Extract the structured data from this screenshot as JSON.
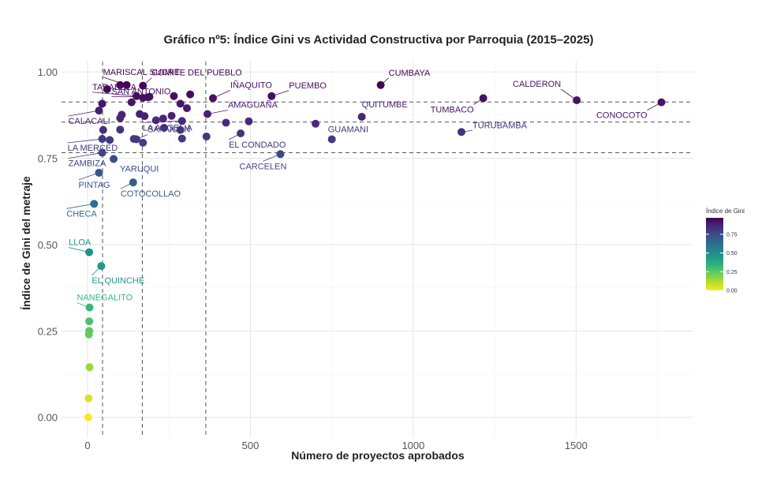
{
  "chart_data": {
    "type": "scatter",
    "title": "Gráfico nº5: Índice Gini vs Actividad Constructiva por Parroquia (2015–2025)",
    "xlabel": "Número de proyectos aprobados",
    "ylabel": "Índice de Gini del metraje",
    "xlim": [
      -80,
      1860
    ],
    "ylim": [
      -0.06,
      1.03
    ],
    "x_ticks": [
      0,
      500,
      1000,
      1500
    ],
    "x_tick_labels": [
      "0",
      "500",
      "1000",
      "1500"
    ],
    "y_ticks": [
      0,
      0.25,
      0.5,
      0.75,
      1.0
    ],
    "y_tick_labels": [
      "0.00",
      "0.25",
      "0.50",
      "0.75",
      "1.00"
    ],
    "grid": true,
    "reference_lines": {
      "vertical_x": [
        46,
        168,
        363
      ],
      "horizontal_y": [
        0.766,
        0.855,
        0.913
      ]
    },
    "legend": {
      "title": "Índice de Gini",
      "ticks": [
        0,
        0.25,
        0.5,
        0.75
      ],
      "tick_labels": [
        "0.00",
        "0.25",
        "0.50",
        "0.75"
      ],
      "position": "right"
    },
    "colorscale": [
      "#fde725",
      "#b5de2b",
      "#6ece58",
      "#35b779",
      "#1f9e89",
      "#26828e",
      "#31688e",
      "#3e4989",
      "#482878",
      "#440154"
    ],
    "labeled_points": [
      {
        "name": "CUMBAYA",
        "x": 900,
        "y": 0.962
      },
      {
        "name": "CALDERON",
        "x": 1502,
        "y": 0.918
      },
      {
        "name": "CONOCOTO",
        "x": 1762,
        "y": 0.912
      },
      {
        "name": "TUMBACO",
        "x": 1215,
        "y": 0.924
      },
      {
        "name": "PUEMBO",
        "x": 565,
        "y": 0.93
      },
      {
        "name": "IÑAQUITO",
        "x": 385,
        "y": 0.924
      },
      {
        "name": "AMAGUAÑA",
        "x": 368,
        "y": 0.878
      },
      {
        "name": "QUITUMBE",
        "x": 842,
        "y": 0.87
      },
      {
        "name": "TURUBAMBA",
        "x": 1148,
        "y": 0.826
      },
      {
        "name": "GUAMANI",
        "x": 750,
        "y": 0.805
      },
      {
        "name": "EL CONDADO",
        "x": 470,
        "y": 0.822
      },
      {
        "name": "CARCELEN",
        "x": 592,
        "y": 0.762
      },
      {
        "name": "MARISCAL SUCRE",
        "x": 120,
        "y": 0.962
      },
      {
        "name": "COMITE DEL PUEBLO",
        "x": 170,
        "y": 0.96
      },
      {
        "name": "TABABELA",
        "x": 150,
        "y": 0.93
      },
      {
        "name": "SAN ANTONIO",
        "x": 190,
        "y": 0.928
      },
      {
        "name": "CALACALI",
        "x": 35,
        "y": 0.888
      },
      {
        "name": "LA ARGELIA",
        "x": 290,
        "y": 0.858
      },
      {
        "name": "SAN JUAN",
        "x": 150,
        "y": 0.805
      },
      {
        "name": "LA MERCED",
        "x": 45,
        "y": 0.806
      },
      {
        "name": "ZAMBIZA",
        "x": 45,
        "y": 0.766
      },
      {
        "name": "YARUQUI",
        "x": 80,
        "y": 0.748
      },
      {
        "name": "PINTAG",
        "x": 35,
        "y": 0.708
      },
      {
        "name": "COTOCOLLAO",
        "x": 140,
        "y": 0.68
      },
      {
        "name": "CHECA",
        "x": 20,
        "y": 0.618
      },
      {
        "name": "LLOA",
        "x": 5,
        "y": 0.478
      },
      {
        "name": "EL QUINCHE",
        "x": 42,
        "y": 0.438
      },
      {
        "name": "NANEGALITO",
        "x": 6,
        "y": 0.318
      }
    ],
    "other_points": [
      {
        "x": 60,
        "y": 0.95
      },
      {
        "x": 100,
        "y": 0.962
      },
      {
        "x": 170,
        "y": 0.925
      },
      {
        "x": 185,
        "y": 0.927
      },
      {
        "x": 265,
        "y": 0.93
      },
      {
        "x": 315,
        "y": 0.935
      },
      {
        "x": 285,
        "y": 0.908
      },
      {
        "x": 45,
        "y": 0.908
      },
      {
        "x": 135,
        "y": 0.912
      },
      {
        "x": 105,
        "y": 0.876
      },
      {
        "x": 100,
        "y": 0.866
      },
      {
        "x": 160,
        "y": 0.878
      },
      {
        "x": 175,
        "y": 0.872
      },
      {
        "x": 210,
        "y": 0.86
      },
      {
        "x": 232,
        "y": 0.865
      },
      {
        "x": 258,
        "y": 0.873
      },
      {
        "x": 305,
        "y": 0.895
      },
      {
        "x": 425,
        "y": 0.853
      },
      {
        "x": 495,
        "y": 0.857
      },
      {
        "x": 700,
        "y": 0.85
      },
      {
        "x": 235,
        "y": 0.838
      },
      {
        "x": 285,
        "y": 0.832
      },
      {
        "x": 100,
        "y": 0.833
      },
      {
        "x": 48,
        "y": 0.832
      },
      {
        "x": 68,
        "y": 0.803
      },
      {
        "x": 142,
        "y": 0.806
      },
      {
        "x": 170,
        "y": 0.795
      },
      {
        "x": 290,
        "y": 0.807
      },
      {
        "x": 365,
        "y": 0.813
      },
      {
        "x": 5,
        "y": 0.278
      },
      {
        "x": 5,
        "y": 0.25
      },
      {
        "x": 4,
        "y": 0.24
      },
      {
        "x": 6,
        "y": 0.145
      },
      {
        "x": 3,
        "y": 0.055
      },
      {
        "x": 2,
        "y": 0.0
      }
    ]
  }
}
